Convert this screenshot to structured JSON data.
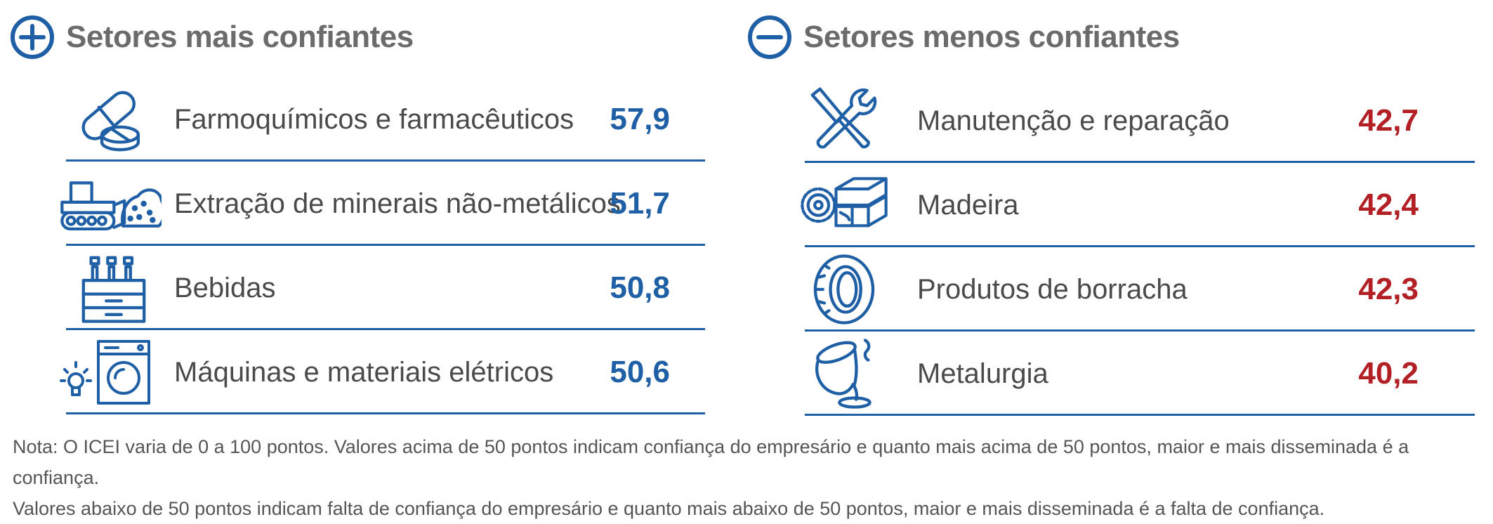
{
  "colors": {
    "blue": "#1f5fa5",
    "red": "#b21f24",
    "grey_title": "#6b6b6b",
    "text": "#4a4a4a"
  },
  "icons": {
    "plus": "plus-circle-icon",
    "minus": "minus-circle-icon"
  },
  "chart_data": [
    {
      "type": "table",
      "title": "Setores mais confiantes",
      "categories": [
        "Farmoquímicos e farmacêuticos",
        "Extração de minerais não-metálicos",
        "Bebidas",
        "Máquinas e materiais elétricos"
      ],
      "values": [
        57.9,
        51.7,
        50.8,
        50.6
      ],
      "value_labels": [
        "57,9",
        "51,7",
        "50,8",
        "50,6"
      ],
      "icons": [
        "pills-icon",
        "bulldozer-icon",
        "bottle-crate-icon",
        "washing-machine-lightbulb-icon"
      ],
      "value_color": "#1f5fa5"
    },
    {
      "type": "table",
      "title": "Setores menos confiantes",
      "categories": [
        "Manutenção e reparação",
        "Madeira",
        "Produtos de borracha",
        "Metalurgia"
      ],
      "values": [
        42.7,
        42.4,
        42.3,
        40.2
      ],
      "value_labels": [
        "42,7",
        "42,4",
        "42,3",
        "40,2"
      ],
      "icons": [
        "wrench-screwdriver-icon",
        "sawblade-lumber-icon",
        "tire-icon",
        "ladle-pour-icon"
      ],
      "value_color": "#b21f24"
    }
  ],
  "note": {
    "line1": "Nota: O ICEI varia de 0 a 100 pontos. Valores acima de 50 pontos indicam confiança do empresário e quanto mais acima de 50 pontos, maior e mais disseminada é a confiança.",
    "line2": "Valores abaixo de 50 pontos indicam falta de confiança do empresário e quanto mais abaixo de 50 pontos, maior e mais disseminada é a falta de confiança."
  }
}
